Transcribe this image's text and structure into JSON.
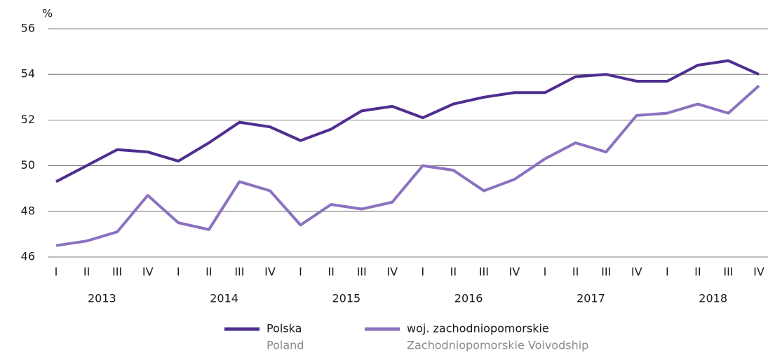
{
  "chart_data": {
    "type": "line",
    "y_axis_label": "%",
    "categories": [
      "I",
      "II",
      "III",
      "IV",
      "I",
      "II",
      "III",
      "IV",
      "I",
      "II",
      "III",
      "IV",
      "I",
      "II",
      "III",
      "IV",
      "I",
      "II",
      "III",
      "IV",
      "I",
      "II",
      "III",
      "IV"
    ],
    "year_groups": [
      "2013",
      "2014",
      "2015",
      "2016",
      "2017",
      "2018"
    ],
    "series": [
      {
        "name": "Polska",
        "name_en": "Poland",
        "color": "#4f2d8f",
        "values": [
          49.3,
          50.0,
          50.7,
          50.6,
          50.2,
          51.0,
          51.9,
          51.7,
          51.1,
          51.6,
          52.4,
          52.6,
          52.1,
          52.7,
          53.0,
          53.2,
          53.2,
          53.9,
          54.0,
          53.7,
          53.7,
          54.4,
          54.6,
          54.0
        ]
      },
      {
        "name": "woj. zachodniopomorskie",
        "name_en": "Zachodniopomorskie Voivodship",
        "color": "#8b72c0",
        "values": [
          46.5,
          46.7,
          47.1,
          48.7,
          47.5,
          47.2,
          49.3,
          48.9,
          47.4,
          48.3,
          48.1,
          48.4,
          50.0,
          49.8,
          48.9,
          49.4,
          50.3,
          51.0,
          50.6,
          52.2,
          52.3,
          52.7,
          52.3,
          53.5
        ]
      }
    ],
    "ylim": [
      46,
      56
    ],
    "yticks": [
      46,
      48,
      50,
      52,
      54,
      56
    ],
    "grid": true
  }
}
